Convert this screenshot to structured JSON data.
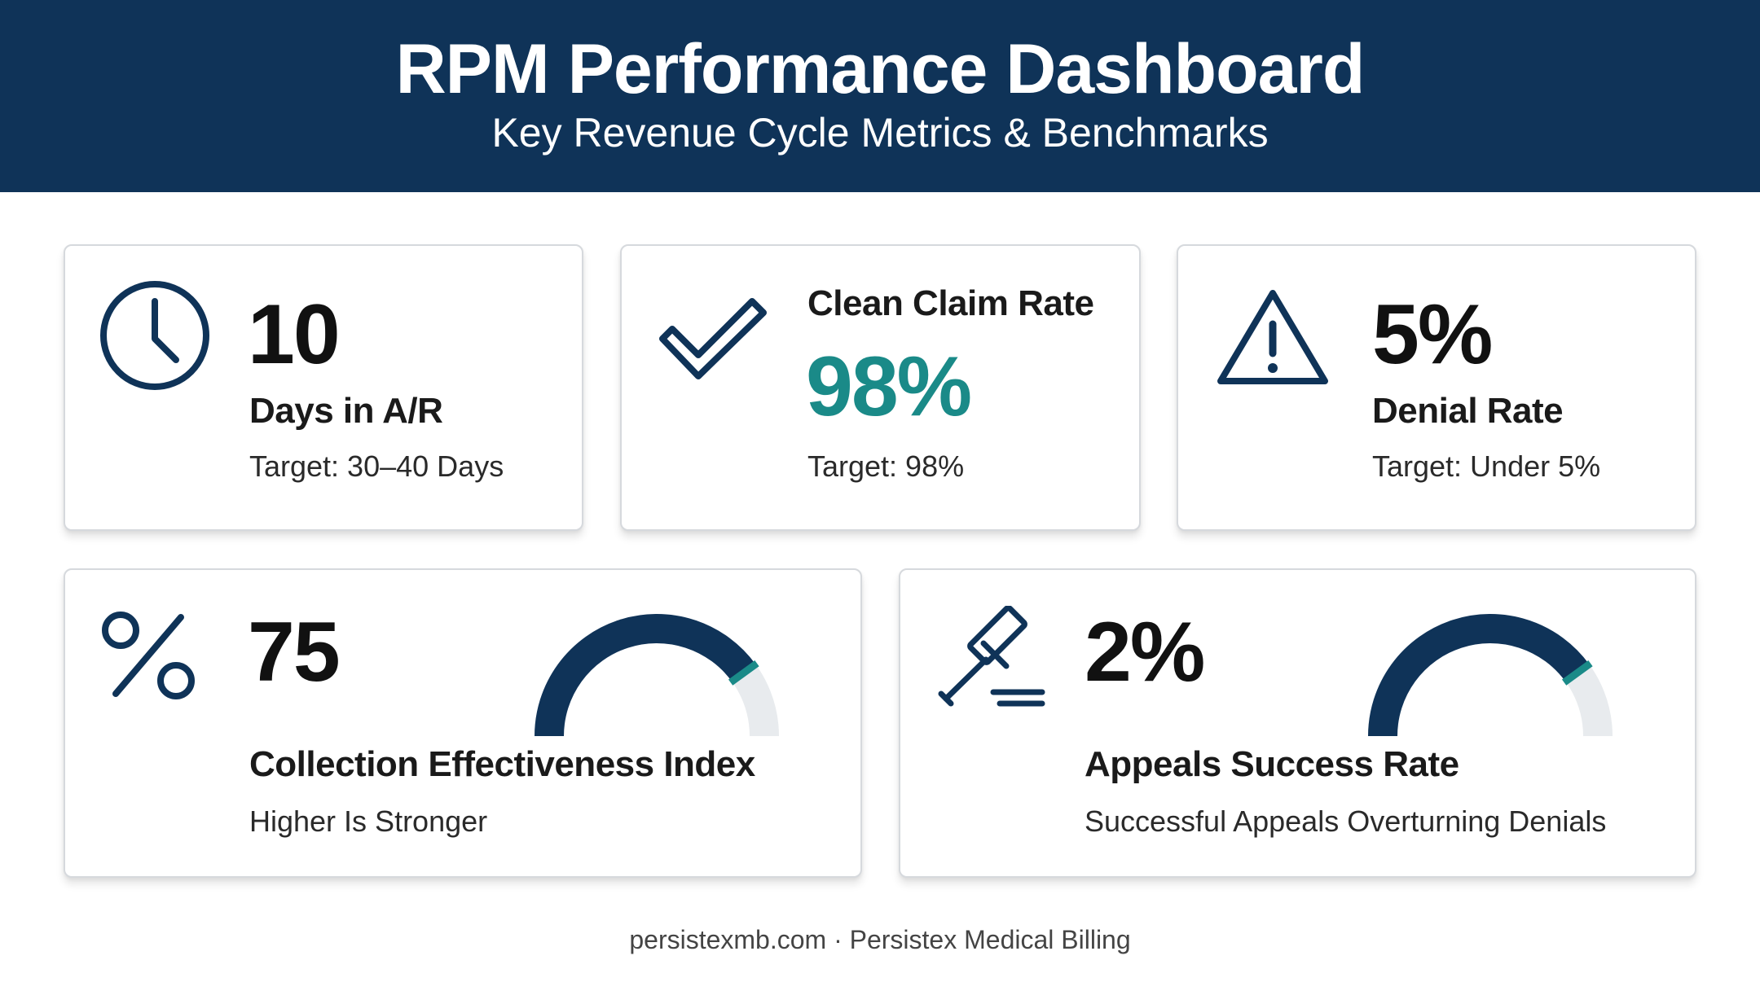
{
  "header": {
    "title": "RPM Performance Dashboard",
    "subtitle": "Key Revenue Cycle Metrics & Benchmarks"
  },
  "colors": {
    "navy": "#0f3358",
    "teal": "#1a8a88",
    "gauge_track": "#e8ebee"
  },
  "cards": {
    "days_in_ar": {
      "icon": "clock-icon",
      "value": "10",
      "label": "Days in A/R",
      "target": "Target: 30–40 Days"
    },
    "clean_claim": {
      "icon": "checkmark-icon",
      "label": "Clean Claim Rate",
      "value": "98%",
      "target": "Target: 98%"
    },
    "denial_rate": {
      "icon": "warning-triangle-icon",
      "value": "5%",
      "label": "Denial Rate",
      "target": "Target: Under 5%"
    },
    "cei": {
      "icon": "percent-icon",
      "value": "75",
      "label": "Collection Effectiveness Index",
      "note": "Higher Is Stronger",
      "gauge_fraction": 0.8
    },
    "appeals": {
      "icon": "gavel-icon",
      "value": "2%",
      "label": "Appeals Success Rate",
      "note": "Successful Appeals Overturning Denials",
      "gauge_fraction": 0.8
    }
  },
  "footer": {
    "text": "persistexmb.com · Persistex Medical Billing"
  }
}
